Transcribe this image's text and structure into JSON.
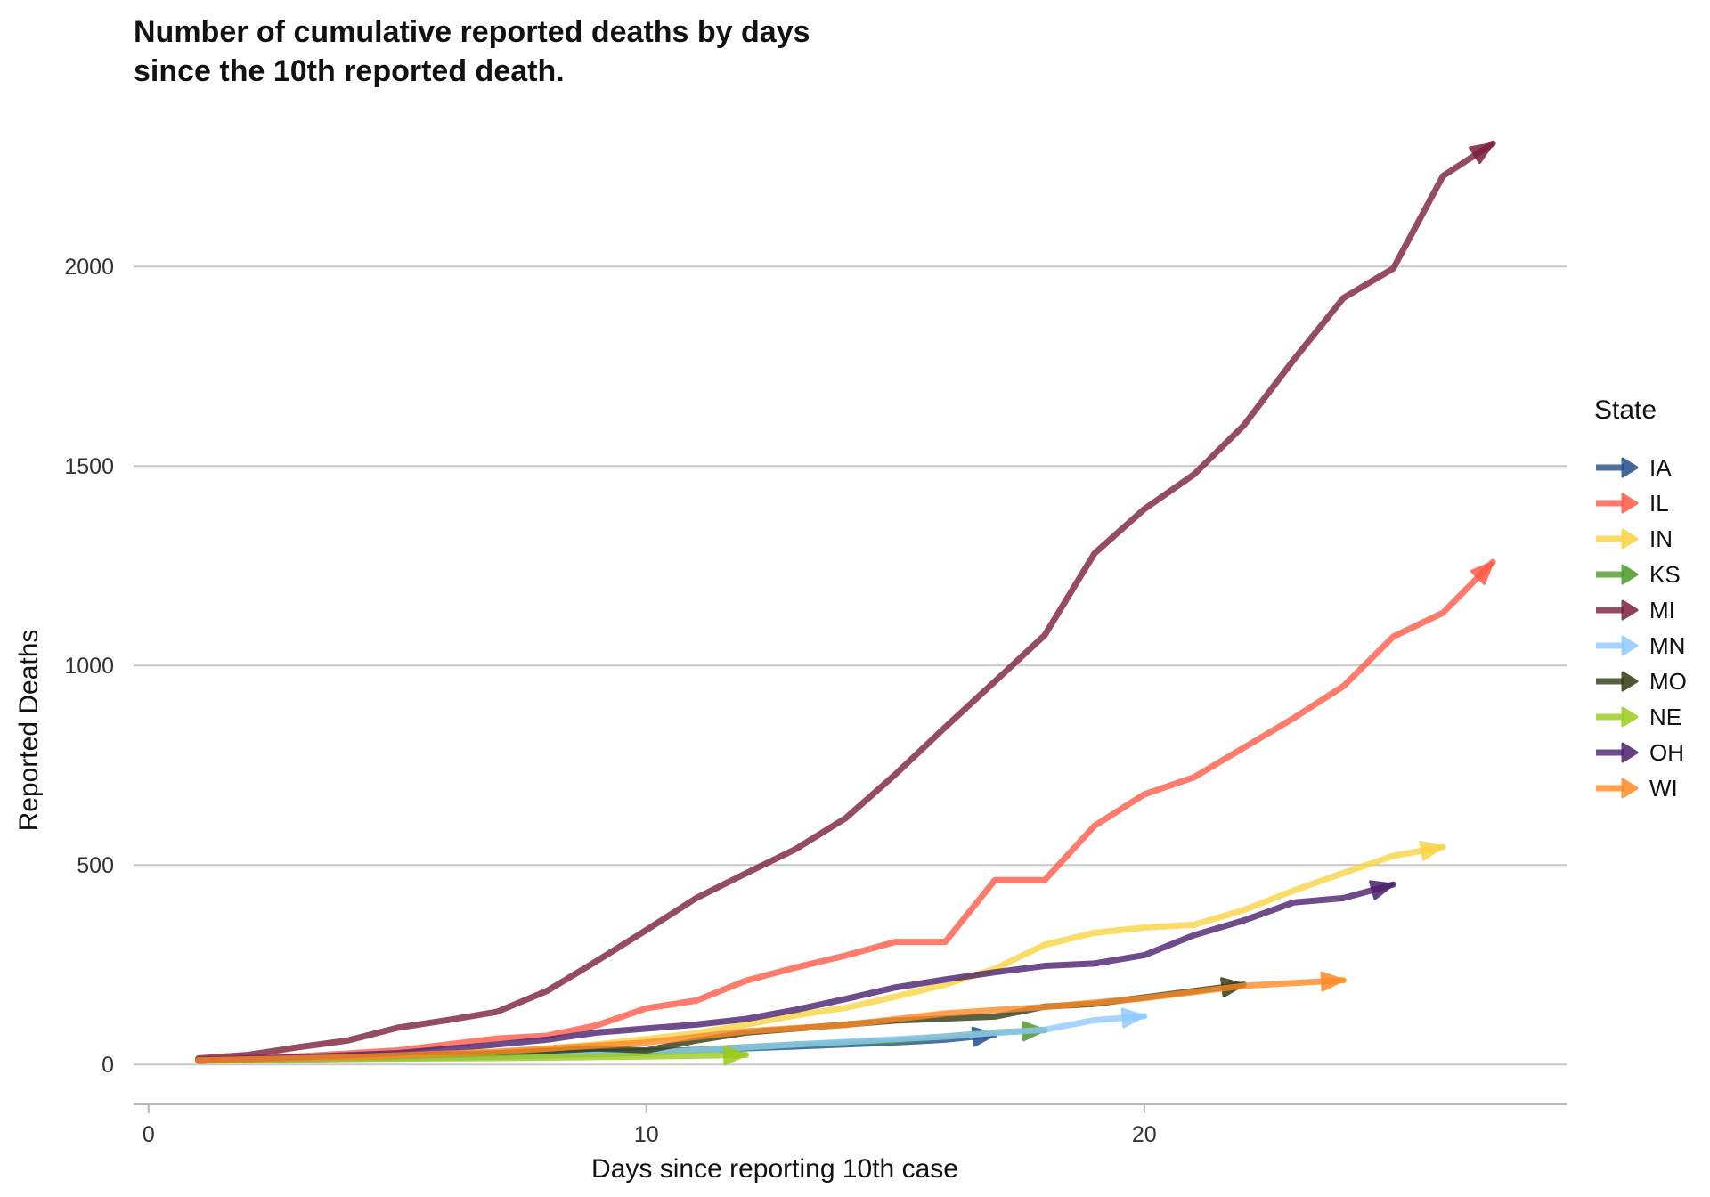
{
  "chart_data": {
    "type": "line",
    "title": "Number of cumulative reported deaths by days\nsince the 10th reported death.",
    "xlabel": "Days since reporting 10th case",
    "ylabel": "Reported Deaths",
    "xlim": [
      -0.3,
      28.5
    ],
    "ylim": [
      -100,
      2400
    ],
    "xticks": [
      0,
      10,
      20
    ],
    "yticks": [
      0,
      500,
      1000,
      1500,
      2000
    ],
    "grid": "horizontal major",
    "legend": {
      "title": "State",
      "placement": "right"
    },
    "series": [
      {
        "name": "IA",
        "color": "#1F4E8C",
        "x": [
          1,
          3,
          5,
          7,
          9,
          11,
          13,
          15,
          16,
          17
        ],
        "y": [
          11,
          15,
          20,
          25,
          30,
          36,
          45,
          55,
          62,
          75
        ]
      },
      {
        "name": "IL",
        "color": "#FF5A46",
        "x": [
          1,
          3,
          5,
          7,
          8,
          9,
          10,
          11,
          12,
          13,
          14,
          15,
          16,
          17,
          18,
          19,
          20,
          21,
          22,
          23,
          24,
          25,
          26,
          27
        ],
        "y": [
          12,
          20,
          35,
          65,
          72,
          98,
          141,
          160,
          210,
          243,
          273,
          307,
          307,
          462,
          462,
          598,
          677,
          720,
          794,
          868,
          948,
          1072,
          1132,
          1259
        ]
      },
      {
        "name": "IN",
        "color": "#F9D442",
        "x": [
          1,
          3,
          5,
          7,
          9,
          11,
          12,
          13,
          14,
          15,
          16,
          17,
          18,
          19,
          20,
          21,
          22,
          23,
          24,
          25,
          26
        ],
        "y": [
          10,
          14,
          18,
          30,
          50,
          78,
          100,
          123,
          142,
          170,
          200,
          240,
          300,
          330,
          343,
          350,
          387,
          436,
          480,
          523,
          545
        ]
      },
      {
        "name": "KS",
        "color": "#4E9A2A",
        "x": [
          1,
          4,
          7,
          10,
          13,
          15,
          16,
          17,
          18
        ],
        "y": [
          10,
          14,
          20,
          30,
          50,
          60,
          70,
          80,
          86
        ]
      },
      {
        "name": "MI",
        "color": "#7B1F3A",
        "x": [
          1,
          2,
          3,
          4,
          5,
          6,
          7,
          8,
          9,
          10,
          11,
          12,
          13,
          14,
          15,
          16,
          17,
          18,
          19,
          20,
          21,
          22,
          23,
          24,
          25,
          26,
          27
        ],
        "y": [
          15,
          24,
          43,
          60,
          92,
          111,
          132,
          184,
          259,
          337,
          417,
          479,
          540,
          617,
          727,
          845,
          960,
          1076,
          1281,
          1392,
          1479,
          1602,
          1766,
          1921,
          1995,
          2227,
          2308
        ]
      },
      {
        "name": "MN",
        "color": "#8FCBFF",
        "x": [
          1,
          4,
          7,
          10,
          13,
          16,
          17,
          18,
          19,
          20
        ],
        "y": [
          10,
          14,
          20,
          28,
          50,
          70,
          79,
          87,
          111,
          121
        ]
      },
      {
        "name": "MO",
        "color": "#2F3A12",
        "x": [
          1,
          4,
          7,
          9,
          10,
          11,
          12,
          13,
          14,
          15,
          16,
          17,
          18,
          19,
          20,
          21,
          22
        ],
        "y": [
          10,
          18,
          28,
          40,
          35,
          60,
          80,
          90,
          100,
          110,
          115,
          120,
          145,
          152,
          168,
          184,
          200
        ]
      },
      {
        "name": "NE",
        "color": "#9BCB1A",
        "x": [
          1,
          4,
          7,
          10,
          12
        ],
        "y": [
          10,
          14,
          16,
          20,
          24
        ]
      },
      {
        "name": "OH",
        "color": "#4A1F6E",
        "x": [
          1,
          3,
          5,
          7,
          8,
          9,
          10,
          11,
          12,
          13,
          14,
          15,
          16,
          17,
          18,
          19,
          20,
          21,
          22,
          23,
          24,
          25
        ],
        "y": [
          10,
          18,
          28,
          50,
          62,
          80,
          90,
          100,
          114,
          137,
          164,
          193,
          213,
          231,
          247,
          253,
          274,
          324,
          361,
          406,
          417,
          451
        ]
      },
      {
        "name": "WI",
        "color": "#FF8A25",
        "x": [
          1,
          4,
          7,
          10,
          12,
          14,
          16,
          18,
          20,
          22,
          24
        ],
        "y": [
          10,
          18,
          32,
          55,
          83,
          99,
          128,
          144,
          166,
          197,
          211
        ]
      }
    ]
  }
}
